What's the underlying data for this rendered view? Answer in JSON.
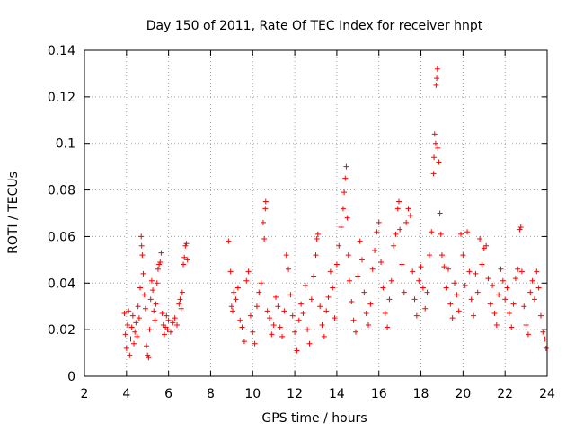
{
  "chart_data": {
    "type": "scatter",
    "title": "Day 150 of 2011, Rate Of TEC Index for receiver hnpt",
    "xlabel": "GPS time / hours",
    "ylabel": "ROTI / TECUs",
    "xlim": [
      2,
      24
    ],
    "ylim": [
      0,
      0.14
    ],
    "xticks": [
      "2",
      "4",
      "6",
      "8",
      "10",
      "12",
      "14",
      "16",
      "18",
      "20",
      "22",
      "24"
    ],
    "yticks": [
      "0",
      "0.02",
      "0.04",
      "0.06",
      "0.08",
      "0.1",
      "0.12",
      "0.14"
    ],
    "grid": true,
    "marker": "+",
    "color": "#ff0000",
    "series": [
      {
        "name": "ROTI",
        "points": [
          [
            3.9,
            0.027
          ],
          [
            3.95,
            0.018
          ],
          [
            4.0,
            0.012
          ],
          [
            4.05,
            0.022
          ],
          [
            4.1,
            0.028
          ],
          [
            4.15,
            0.009
          ],
          [
            4.2,
            0.016
          ],
          [
            4.25,
            0.021
          ],
          [
            4.3,
            0.026
          ],
          [
            4.35,
            0.014
          ],
          [
            4.4,
            0.019
          ],
          [
            4.45,
            0.023
          ],
          [
            4.5,
            0.017
          ],
          [
            4.55,
            0.03
          ],
          [
            4.6,
            0.025
          ],
          [
            4.65,
            0.038
          ],
          [
            4.7,
            0.06
          ],
          [
            4.72,
            0.056
          ],
          [
            4.75,
            0.052
          ],
          [
            4.8,
            0.044
          ],
          [
            4.85,
            0.035
          ],
          [
            4.9,
            0.029
          ],
          [
            4.95,
            0.013
          ],
          [
            5.0,
            0.009
          ],
          [
            5.05,
            0.008
          ],
          [
            5.1,
            0.02
          ],
          [
            5.15,
            0.033
          ],
          [
            5.2,
            0.041
          ],
          [
            5.25,
            0.037
          ],
          [
            5.3,
            0.028
          ],
          [
            5.35,
            0.024
          ],
          [
            5.4,
            0.031
          ],
          [
            5.45,
            0.04
          ],
          [
            5.5,
            0.046
          ],
          [
            5.55,
            0.048
          ],
          [
            5.6,
            0.049
          ],
          [
            5.65,
            0.053
          ],
          [
            5.7,
            0.027
          ],
          [
            5.75,
            0.022
          ],
          [
            5.8,
            0.018
          ],
          [
            5.85,
            0.021
          ],
          [
            5.9,
            0.026
          ],
          [
            5.95,
            0.02
          ],
          [
            6.0,
            0.024
          ],
          [
            6.1,
            0.019
          ],
          [
            6.2,
            0.023
          ],
          [
            6.3,
            0.025
          ],
          [
            6.4,
            0.022
          ],
          [
            6.5,
            0.031
          ],
          [
            6.55,
            0.033
          ],
          [
            6.6,
            0.029
          ],
          [
            6.65,
            0.036
          ],
          [
            6.7,
            0.048
          ],
          [
            6.75,
            0.051
          ],
          [
            6.8,
            0.056
          ],
          [
            6.85,
            0.057
          ],
          [
            6.9,
            0.05
          ],
          [
            8.85,
            0.058
          ],
          [
            8.95,
            0.045
          ],
          [
            9.0,
            0.03
          ],
          [
            9.05,
            0.028
          ],
          [
            9.1,
            0.036
          ],
          [
            9.2,
            0.033
          ],
          [
            9.3,
            0.038
          ],
          [
            9.4,
            0.024
          ],
          [
            9.5,
            0.021
          ],
          [
            9.6,
            0.015
          ],
          [
            9.7,
            0.041
          ],
          [
            9.8,
            0.045
          ],
          [
            9.9,
            0.026
          ],
          [
            10.0,
            0.019
          ],
          [
            10.1,
            0.014
          ],
          [
            10.2,
            0.03
          ],
          [
            10.3,
            0.036
          ],
          [
            10.4,
            0.04
          ],
          [
            10.5,
            0.066
          ],
          [
            10.55,
            0.059
          ],
          [
            10.6,
            0.072
          ],
          [
            10.62,
            0.075
          ],
          [
            10.7,
            0.028
          ],
          [
            10.8,
            0.025
          ],
          [
            10.9,
            0.018
          ],
          [
            11.0,
            0.022
          ],
          [
            11.1,
            0.034
          ],
          [
            11.2,
            0.03
          ],
          [
            11.3,
            0.021
          ],
          [
            11.4,
            0.017
          ],
          [
            11.5,
            0.028
          ],
          [
            11.6,
            0.052
          ],
          [
            11.7,
            0.046
          ],
          [
            11.8,
            0.035
          ],
          [
            11.9,
            0.026
          ],
          [
            12.0,
            0.019
          ],
          [
            12.1,
            0.011
          ],
          [
            12.2,
            0.024
          ],
          [
            12.3,
            0.031
          ],
          [
            12.4,
            0.027
          ],
          [
            12.5,
            0.039
          ],
          [
            12.6,
            0.02
          ],
          [
            12.7,
            0.014
          ],
          [
            12.8,
            0.033
          ],
          [
            12.9,
            0.043
          ],
          [
            13.0,
            0.052
          ],
          [
            13.05,
            0.059
          ],
          [
            13.1,
            0.061
          ],
          [
            13.2,
            0.03
          ],
          [
            13.3,
            0.022
          ],
          [
            13.4,
            0.017
          ],
          [
            13.5,
            0.028
          ],
          [
            13.6,
            0.034
          ],
          [
            13.7,
            0.045
          ],
          [
            13.8,
            0.038
          ],
          [
            13.9,
            0.025
          ],
          [
            14.0,
            0.048
          ],
          [
            14.1,
            0.056
          ],
          [
            14.2,
            0.064
          ],
          [
            14.3,
            0.072
          ],
          [
            14.35,
            0.079
          ],
          [
            14.4,
            0.085
          ],
          [
            14.45,
            0.09
          ],
          [
            14.5,
            0.068
          ],
          [
            14.55,
            0.052
          ],
          [
            14.6,
            0.041
          ],
          [
            14.7,
            0.032
          ],
          [
            14.8,
            0.024
          ],
          [
            14.9,
            0.019
          ],
          [
            15.0,
            0.043
          ],
          [
            15.1,
            0.058
          ],
          [
            15.2,
            0.05
          ],
          [
            15.3,
            0.036
          ],
          [
            15.4,
            0.027
          ],
          [
            15.5,
            0.022
          ],
          [
            15.6,
            0.031
          ],
          [
            15.7,
            0.046
          ],
          [
            15.8,
            0.054
          ],
          [
            15.9,
            0.062
          ],
          [
            16.0,
            0.066
          ],
          [
            16.1,
            0.049
          ],
          [
            16.2,
            0.038
          ],
          [
            16.3,
            0.027
          ],
          [
            16.4,
            0.021
          ],
          [
            16.5,
            0.033
          ],
          [
            16.6,
            0.041
          ],
          [
            16.7,
            0.056
          ],
          [
            16.8,
            0.061
          ],
          [
            16.9,
            0.072
          ],
          [
            16.95,
            0.075
          ],
          [
            17.0,
            0.063
          ],
          [
            17.1,
            0.048
          ],
          [
            17.2,
            0.036
          ],
          [
            17.3,
            0.066
          ],
          [
            17.4,
            0.072
          ],
          [
            17.5,
            0.069
          ],
          [
            17.6,
            0.045
          ],
          [
            17.7,
            0.033
          ],
          [
            17.8,
            0.026
          ],
          [
            17.9,
            0.041
          ],
          [
            18.0,
            0.047
          ],
          [
            18.1,
            0.038
          ],
          [
            18.2,
            0.029
          ],
          [
            18.3,
            0.036
          ],
          [
            18.4,
            0.052
          ],
          [
            18.5,
            0.062
          ],
          [
            18.6,
            0.087
          ],
          [
            18.62,
            0.094
          ],
          [
            18.65,
            0.104
          ],
          [
            18.7,
            0.1
          ],
          [
            18.72,
            0.125
          ],
          [
            18.75,
            0.128
          ],
          [
            18.78,
            0.132
          ],
          [
            18.8,
            0.098
          ],
          [
            18.85,
            0.092
          ],
          [
            18.9,
            0.07
          ],
          [
            18.95,
            0.061
          ],
          [
            19.0,
            0.052
          ],
          [
            19.1,
            0.047
          ],
          [
            19.2,
            0.038
          ],
          [
            19.3,
            0.046
          ],
          [
            19.4,
            0.031
          ],
          [
            19.5,
            0.025
          ],
          [
            19.6,
            0.04
          ],
          [
            19.7,
            0.035
          ],
          [
            19.8,
            0.028
          ],
          [
            19.9,
            0.061
          ],
          [
            20.0,
            0.052
          ],
          [
            20.1,
            0.039
          ],
          [
            20.2,
            0.062
          ],
          [
            20.3,
            0.045
          ],
          [
            20.4,
            0.033
          ],
          [
            20.5,
            0.026
          ],
          [
            20.6,
            0.044
          ],
          [
            20.7,
            0.036
          ],
          [
            20.8,
            0.059
          ],
          [
            20.9,
            0.048
          ],
          [
            21.0,
            0.055
          ],
          [
            21.1,
            0.056
          ],
          [
            21.2,
            0.042
          ],
          [
            21.3,
            0.031
          ],
          [
            21.4,
            0.039
          ],
          [
            21.5,
            0.027
          ],
          [
            21.6,
            0.022
          ],
          [
            21.7,
            0.035
          ],
          [
            21.8,
            0.046
          ],
          [
            21.9,
            0.041
          ],
          [
            22.0,
            0.033
          ],
          [
            22.1,
            0.038
          ],
          [
            22.2,
            0.027
          ],
          [
            22.3,
            0.021
          ],
          [
            22.4,
            0.031
          ],
          [
            22.5,
            0.042
          ],
          [
            22.6,
            0.046
          ],
          [
            22.7,
            0.063
          ],
          [
            22.75,
            0.064
          ],
          [
            22.8,
            0.045
          ],
          [
            22.9,
            0.03
          ],
          [
            23.0,
            0.022
          ],
          [
            23.1,
            0.018
          ],
          [
            23.2,
            0.036
          ],
          [
            23.3,
            0.041
          ],
          [
            23.4,
            0.033
          ],
          [
            23.5,
            0.045
          ],
          [
            23.6,
            0.038
          ],
          [
            23.7,
            0.026
          ],
          [
            23.8,
            0.019
          ],
          [
            23.9,
            0.016
          ],
          [
            23.95,
            0.012
          ]
        ]
      }
    ]
  }
}
